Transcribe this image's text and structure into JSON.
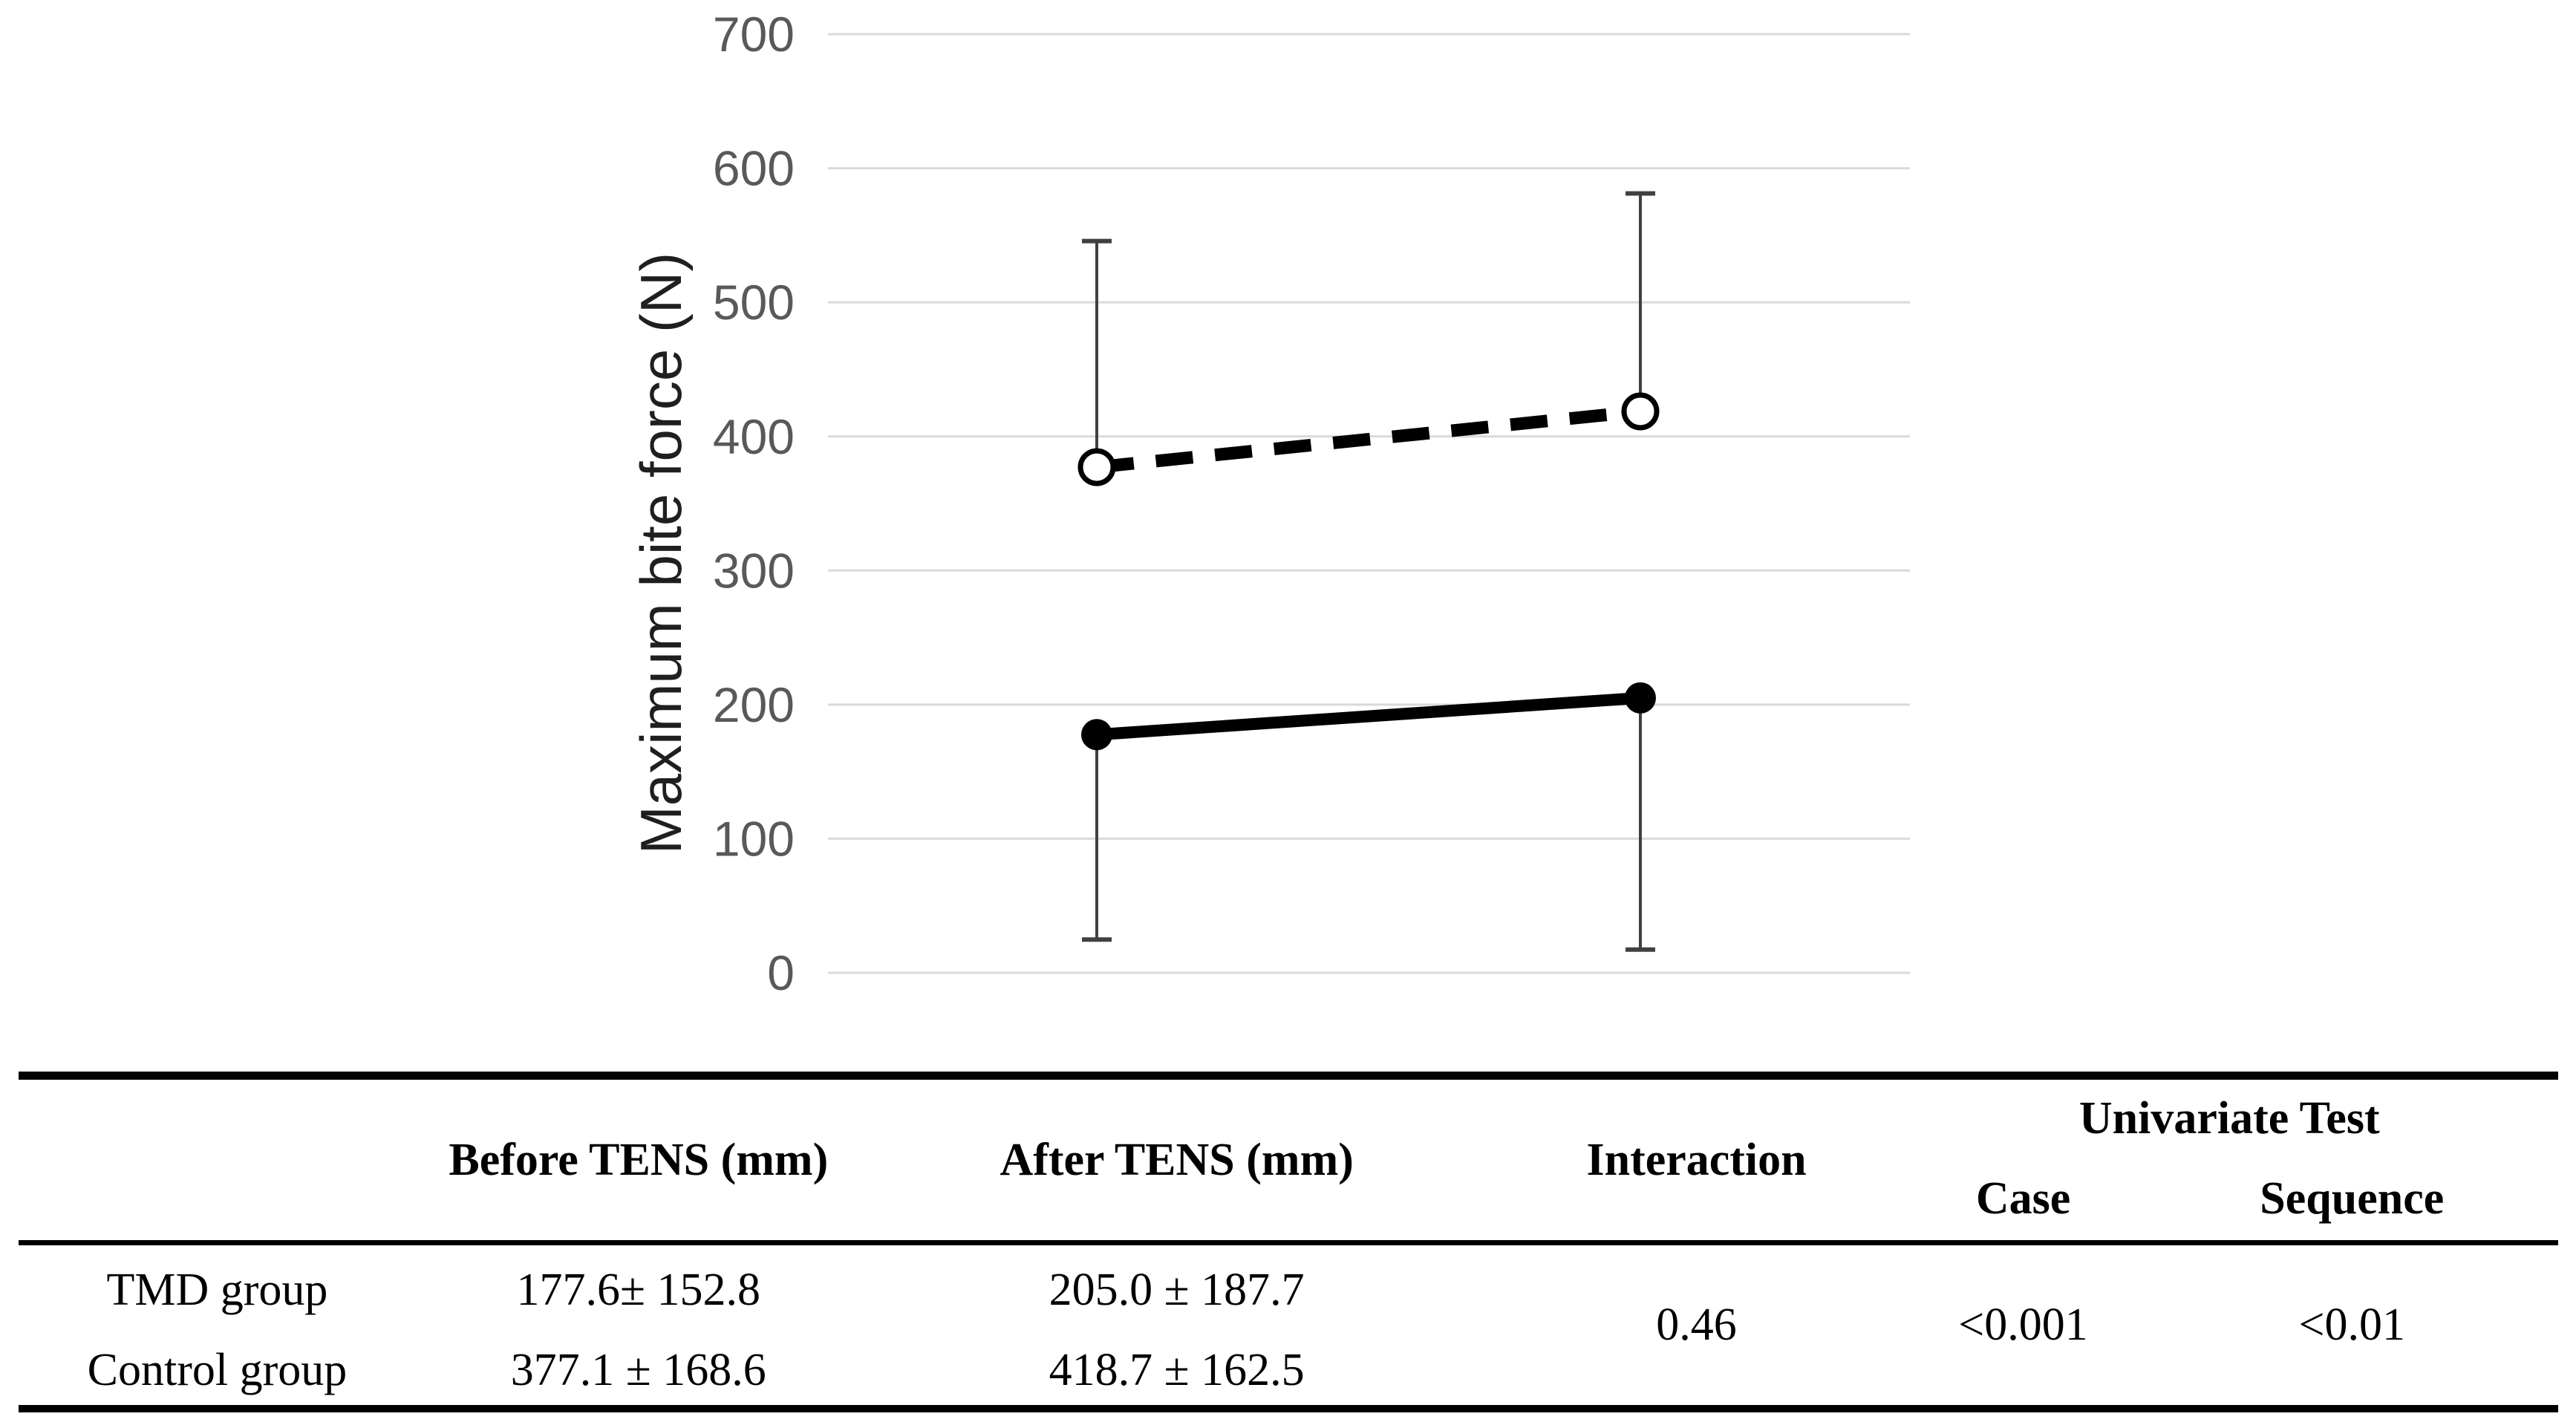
{
  "chart_data": {
    "type": "line",
    "title": "",
    "ylabel": "Maximum bite force (N)",
    "xlabel": "",
    "ylim": [
      0,
      700
    ],
    "yticks": [
      0,
      100,
      200,
      300,
      400,
      500,
      600,
      700
    ],
    "categories": [
      "Before TENS",
      "After TENS"
    ],
    "series": [
      {
        "name": "Control group",
        "values": [
          377.1,
          418.7
        ],
        "sd": [
          168.6,
          162.5
        ],
        "error_direction": "up",
        "line_style": "dashed",
        "marker": "open-circle"
      },
      {
        "name": "TMD group",
        "values": [
          177.6,
          205.0
        ],
        "sd": [
          152.8,
          187.7
        ],
        "error_direction": "down",
        "line_style": "solid",
        "marker": "filled-circle"
      }
    ],
    "grid": true,
    "legend": "none",
    "colors": {
      "line": "#000000",
      "gridline": "#d9d9d9",
      "tick_label": "#595959",
      "error_bar": "#404040"
    }
  },
  "table": {
    "col_headers": {
      "row_label": "",
      "before": "Before TENS (mm)",
      "after": "After TENS (mm)",
      "interaction": "Interaction",
      "univariate": "Univariate Test",
      "case": "Case",
      "sequence": "Sequence"
    },
    "rows": [
      {
        "label": "TMD group",
        "before": "177.6± 152.8",
        "after": "205.0 ± 187.7"
      },
      {
        "label": "Control group",
        "before": "377.1 ± 168.6",
        "after": "418.7 ± 162.5"
      }
    ],
    "interaction_value": "0.46",
    "case_value": "<0.001",
    "sequence_value": "<0.01"
  }
}
